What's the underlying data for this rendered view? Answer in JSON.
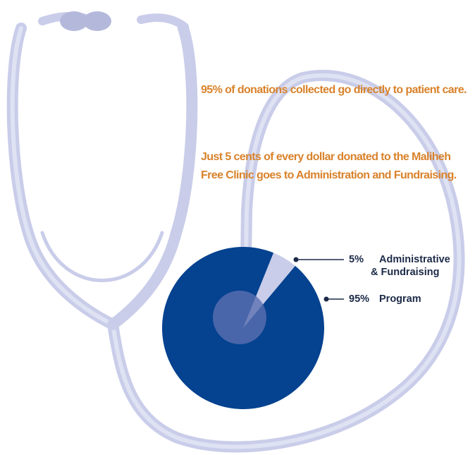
{
  "chart_data": {
    "type": "pie",
    "annotations": [
      "95% of donations collected go directly to patient care.",
      "Just 5 cents of every dollar donated to the Maliheh Free Clinic goes to Administration and Fundraising."
    ],
    "categories": [
      "Administrative & Fundraising",
      "Program"
    ],
    "values": [
      5,
      95
    ],
    "value_labels": [
      "5%",
      "95%"
    ],
    "colors": [
      "#c9cde9",
      "#05428f"
    ]
  }
}
